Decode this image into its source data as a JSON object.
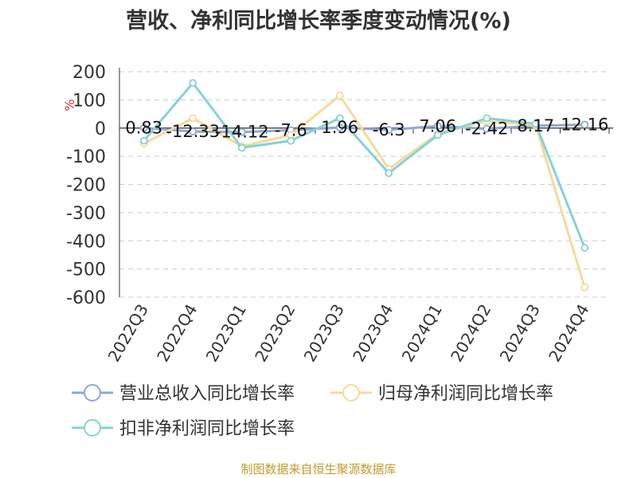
{
  "chart_data": {
    "type": "line",
    "title": "营收、净利同比增长率季度变动情况(%)",
    "ylabel": "%",
    "xlabel": "",
    "categories": [
      "2022Q3",
      "2022Q4",
      "2023Q1",
      "2023Q2",
      "2023Q3",
      "2023Q4",
      "2024Q1",
      "2024Q2",
      "2024Q3",
      "2024Q4"
    ],
    "ylim": [
      -600,
      200
    ],
    "yticks": [
      200,
      100,
      0,
      -100,
      -200,
      -300,
      -400,
      -500,
      -600
    ],
    "grid": true,
    "legend_position": "bottom",
    "series": [
      {
        "name": "营业总收入同比增长率",
        "color": "#8fa7d6",
        "values": [
          0.83,
          -12.33,
          -14.12,
          -7.6,
          1.96,
          -6.3,
          7.06,
          -2.42,
          8.17,
          12.16
        ],
        "labels": [
          "0.83",
          "-12.33",
          "-14.12",
          "-7.6",
          "1.96",
          "-6.3",
          "7.06",
          "-2.42",
          "8.17",
          "12.16"
        ]
      },
      {
        "name": "归母净利润同比增长率",
        "color": "#f8d99b",
        "values": [
          -55,
          35,
          -65,
          -25,
          115,
          -145,
          -20,
          25,
          10,
          -565
        ]
      },
      {
        "name": "扣非净利润同比增长率",
        "color": "#86d2d6",
        "values": [
          -45,
          160,
          -70,
          -45,
          35,
          -160,
          -25,
          35,
          15,
          -425
        ]
      }
    ]
  },
  "footer": {
    "source": "制图数据来自恒生聚源数据库"
  }
}
